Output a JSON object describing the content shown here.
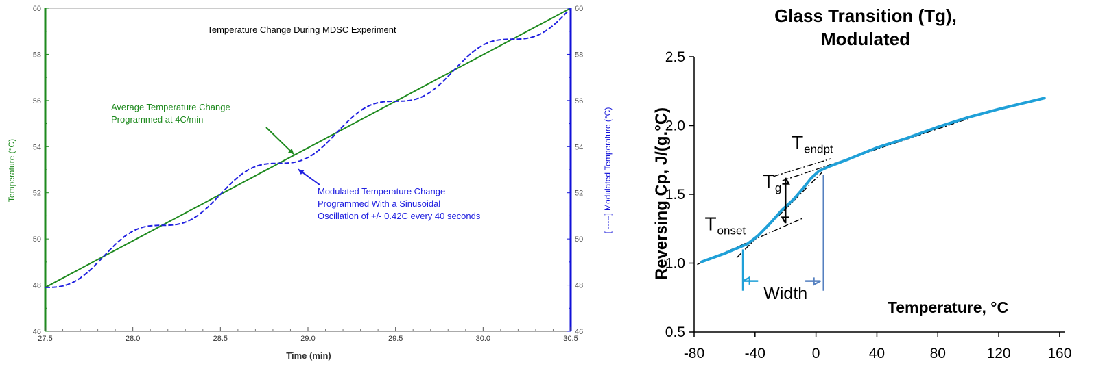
{
  "chart_data": [
    {
      "type": "line",
      "title": "Temperature Change During MDSC Experiment",
      "xlabel": "Time (min)",
      "ylabel_left": "Temperature (°C)",
      "ylabel_right": "[ -----] Modulated Temperature (°C)",
      "xlim": [
        27.5,
        30.5
      ],
      "ylim_left": [
        46,
        60
      ],
      "ylim_right": [
        46,
        60
      ],
      "x_ticks": [
        "27.5",
        "28.0",
        "28.5",
        "29.0",
        "29.5",
        "30.0",
        "30.5"
      ],
      "y_ticks_left": [
        "46",
        "48",
        "50",
        "52",
        "54",
        "56",
        "58",
        "60"
      ],
      "y_ticks_right": [
        "46",
        "48",
        "50",
        "52",
        "54",
        "56",
        "58",
        "60"
      ],
      "series": [
        {
          "name": "Average Temperature",
          "style": "solid",
          "color": "#1e8a1e",
          "x": [
            27.5,
            30.5
          ],
          "y": [
            47.9,
            60.0
          ]
        },
        {
          "name": "Modulated Temperature",
          "style": "dashed",
          "color": "#2020e0",
          "base_start": 47.9,
          "base_end": 60.0,
          "amplitude": 0.42,
          "period_min": 0.6667,
          "x_start": 27.5,
          "x_end": 30.5
        }
      ],
      "annotations": [
        {
          "text": "Average Temperature Change",
          "x": 28.4,
          "y": 55.8
        },
        {
          "text": "Programmed at 4C/min",
          "x": 28.4,
          "y": 55.2,
          "arrow_to": [
            28.92,
            53.67
          ]
        },
        {
          "text": "Modulated Temperature Change",
          "x": 29.5,
          "y": 52.0
        },
        {
          "text": "Programmed With a Sinusoidal",
          "x": 29.5,
          "y": 51.4
        },
        {
          "text": "Oscillation of +/- 0.42C every 40 seconds",
          "x": 29.5,
          "y": 50.8,
          "arrow_to": [
            28.92,
            53.2
          ]
        }
      ],
      "colors": {
        "left_axis": "#1e8a1e",
        "right_axis": "#1010d8",
        "modulated": "#2020e0",
        "average": "#1e8a1e"
      }
    },
    {
      "type": "line",
      "title_lines": [
        "Glass Transition (Tg),",
        "Modulated"
      ],
      "xlabel": "Temperature, °C",
      "ylabel": "Reversing Cp, J/(g.°C)",
      "xlim": [
        -80,
        160
      ],
      "ylim": [
        0.5,
        2.5
      ],
      "x_ticks": [
        "-80",
        "-40",
        "0",
        "40",
        "80",
        "120",
        "160"
      ],
      "y_ticks": [
        "0.5",
        "1.0",
        "1.5",
        "2.0",
        "2.5"
      ],
      "series": [
        {
          "name": "Reversing Cp",
          "color": "#1fa0d8",
          "x": [
            -75,
            -60,
            -45,
            -38,
            -30,
            -22,
            -15,
            -8,
            -3,
            2,
            8,
            20,
            40,
            60,
            80,
            100,
            120,
            150
          ],
          "y": [
            1.01,
            1.07,
            1.14,
            1.2,
            1.29,
            1.39,
            1.46,
            1.55,
            1.62,
            1.67,
            1.7,
            1.75,
            1.84,
            1.91,
            1.99,
            2.06,
            2.12,
            2.2
          ]
        }
      ],
      "tangent_lines": [
        {
          "x": [
            -78,
            -8
          ],
          "y": [
            0.99,
            1.33
          ]
        },
        {
          "x": [
            -52,
            4
          ],
          "y": [
            1.04,
            1.66
          ]
        },
        {
          "x": [
            -28,
            10
          ],
          "y": [
            1.63,
            1.76
          ]
        },
        {
          "x": [
            -22,
            100
          ],
          "y": [
            1.6,
            2.05
          ]
        }
      ],
      "arrows": [
        {
          "kind": "vertical_double",
          "x": -20,
          "y": [
            1.29,
            1.62
          ],
          "color": "#000000"
        },
        {
          "kind": "width_left",
          "from_x": -38,
          "to_x": -48,
          "y": 0.87,
          "color": "#1fa0d8"
        },
        {
          "kind": "width_right",
          "from_x": -7,
          "to_x": 3,
          "y": 0.87,
          "color": "#5580c0"
        }
      ],
      "markers": [
        {
          "kind": "vline",
          "x": -48,
          "y": [
            0.8,
            1.1
          ],
          "color": "#1fa0d8"
        },
        {
          "kind": "vline",
          "x": 5,
          "y": [
            0.8,
            1.64
          ],
          "color": "#5580c0"
        }
      ],
      "labels": [
        {
          "base": "T",
          "sub": "onset",
          "x": -73,
          "y": 1.24
        },
        {
          "base": "T",
          "sub": "g",
          "x": -35,
          "y": 1.55
        },
        {
          "base": "T",
          "sub": "endpt",
          "x": -16,
          "y": 1.83
        },
        {
          "text": "Width",
          "x": -20,
          "y": 0.74
        }
      ],
      "colors": {
        "curve": "#1fa0d8",
        "tangent": "#000000"
      }
    }
  ]
}
